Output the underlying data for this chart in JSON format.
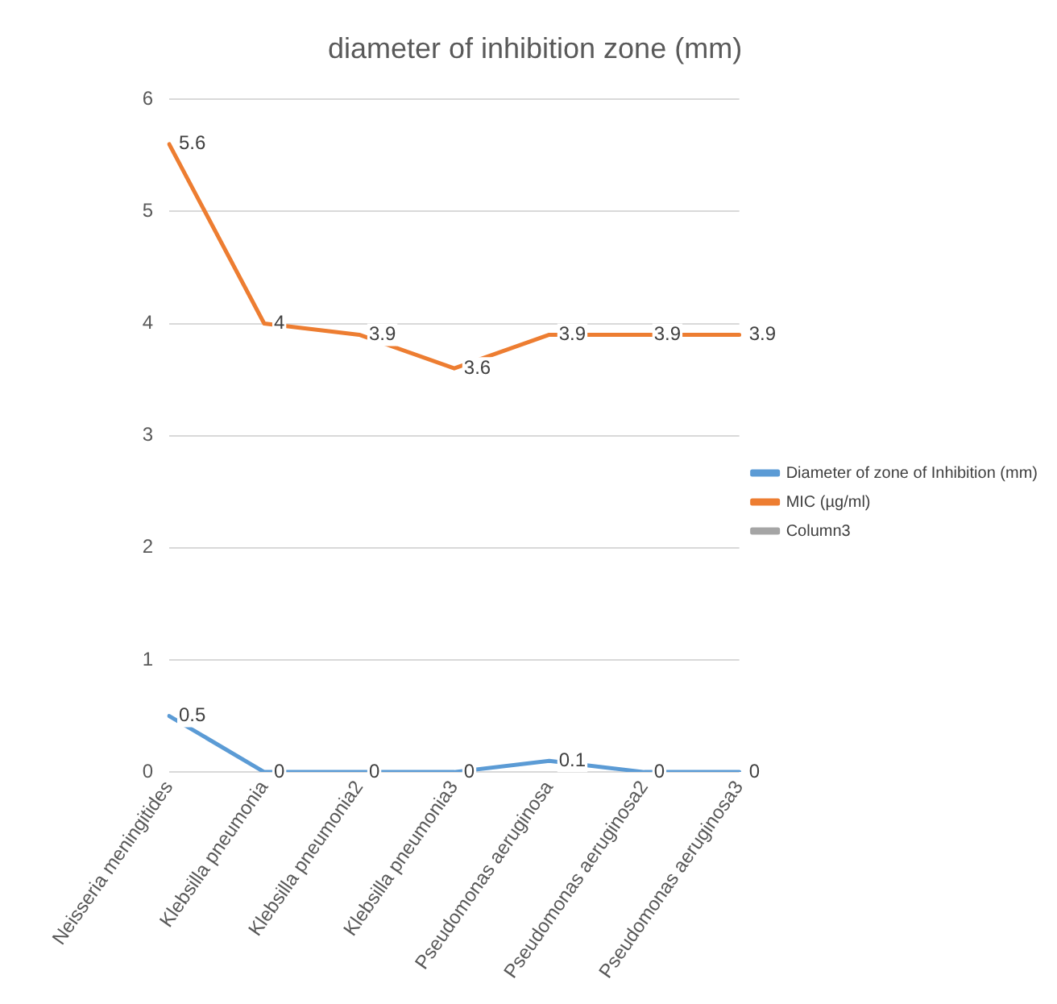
{
  "chart_data": {
    "type": "line",
    "title": "diameter of inhibition zone (mm)",
    "categories": [
      "Neisseria meningitides",
      "Klebsilla pneumonia",
      "Klebsilla pneumonia2",
      "Klebsilla pneumonia3",
      "Pseudomonas aeruginosa",
      "Pseudomonas aeruginosa2",
      "Pseudomonas aeruginosa3"
    ],
    "series": [
      {
        "name": "Diameter of zone of Inhibition (mm)",
        "color": "#5b9bd5",
        "values": [
          0.5,
          0,
          0,
          0,
          0.1,
          0,
          0
        ]
      },
      {
        "name": "MIC (µg/ml)",
        "color": "#ed7d31",
        "values": [
          5.6,
          4,
          3.9,
          3.6,
          3.9,
          3.9,
          3.9
        ]
      },
      {
        "name": "Column3",
        "color": "#a5a5a5",
        "values": [
          null,
          null,
          null,
          null,
          null,
          null,
          null
        ]
      }
    ],
    "ylim": [
      0,
      6
    ],
    "yticks": [
      0,
      1,
      2,
      3,
      4,
      5,
      6
    ],
    "grid": "y",
    "legend": "right",
    "marker": "none",
    "line_style": "solid",
    "data_labels": true
  }
}
